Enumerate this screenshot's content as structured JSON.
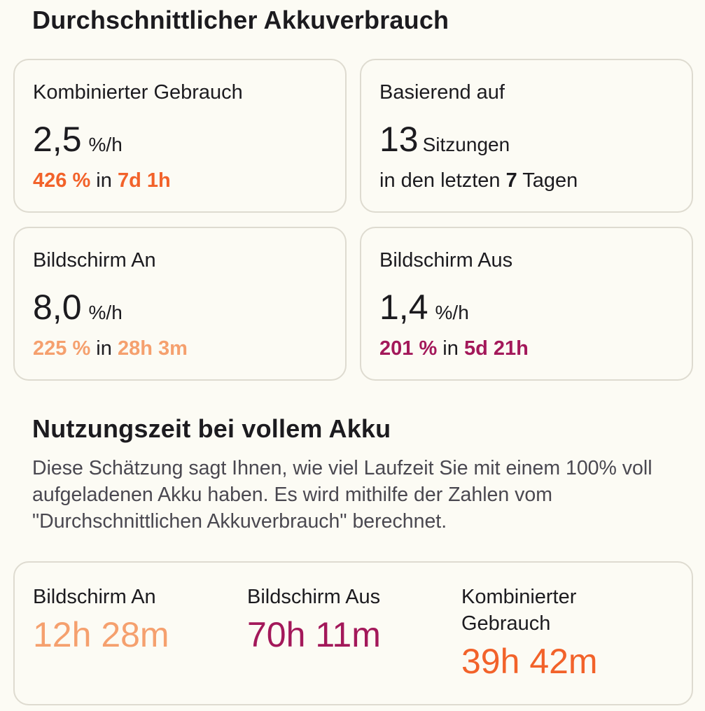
{
  "average": {
    "title": "Durchschnittlicher Akkuverbrauch",
    "combined": {
      "label": "Kombinierter Gebrauch",
      "rate": "2,5",
      "unit": "%/h",
      "percent": "426 %",
      "in": "in",
      "duration": "7d 1h",
      "accent": "#f2622a"
    },
    "based_on": {
      "label": "Basierend auf",
      "sessions": "13",
      "sessions_label": "Sitzungen",
      "prefix": "in den letzten",
      "days": "7",
      "suffix": "Tagen"
    },
    "screen_on": {
      "label": "Bildschirm An",
      "rate": "8,0",
      "unit": "%/h",
      "percent": "225 %",
      "in": "in",
      "duration": "28h 3m",
      "accent": "#f5a06e"
    },
    "screen_off": {
      "label": "Bildschirm Aus",
      "rate": "1,4",
      "unit": "%/h",
      "percent": "201 %",
      "in": "in",
      "duration": "5d 21h",
      "accent": "#a3185a"
    }
  },
  "full_charge": {
    "title": "Nutzungszeit bei vollem Akku",
    "description": "Diese Schätzung sagt Ihnen, wie viel Laufzeit Sie mit einem 100% voll aufgeladenen Akku haben. Es wird mithilfe der Zahlen vom \"Durchschnittlichen Akkuverbrauch\" berechnet.",
    "screen_on": {
      "label": "Bildschirm An",
      "value": "12h 28m",
      "accent": "#f5a06e"
    },
    "screen_off": {
      "label": "Bildschirm Aus",
      "value": "70h 11m",
      "accent": "#a3185a"
    },
    "combined": {
      "label_line1": "Kombinierter",
      "label_line2": "Gebrauch",
      "value": "39h 42m",
      "accent": "#f2622a"
    }
  }
}
